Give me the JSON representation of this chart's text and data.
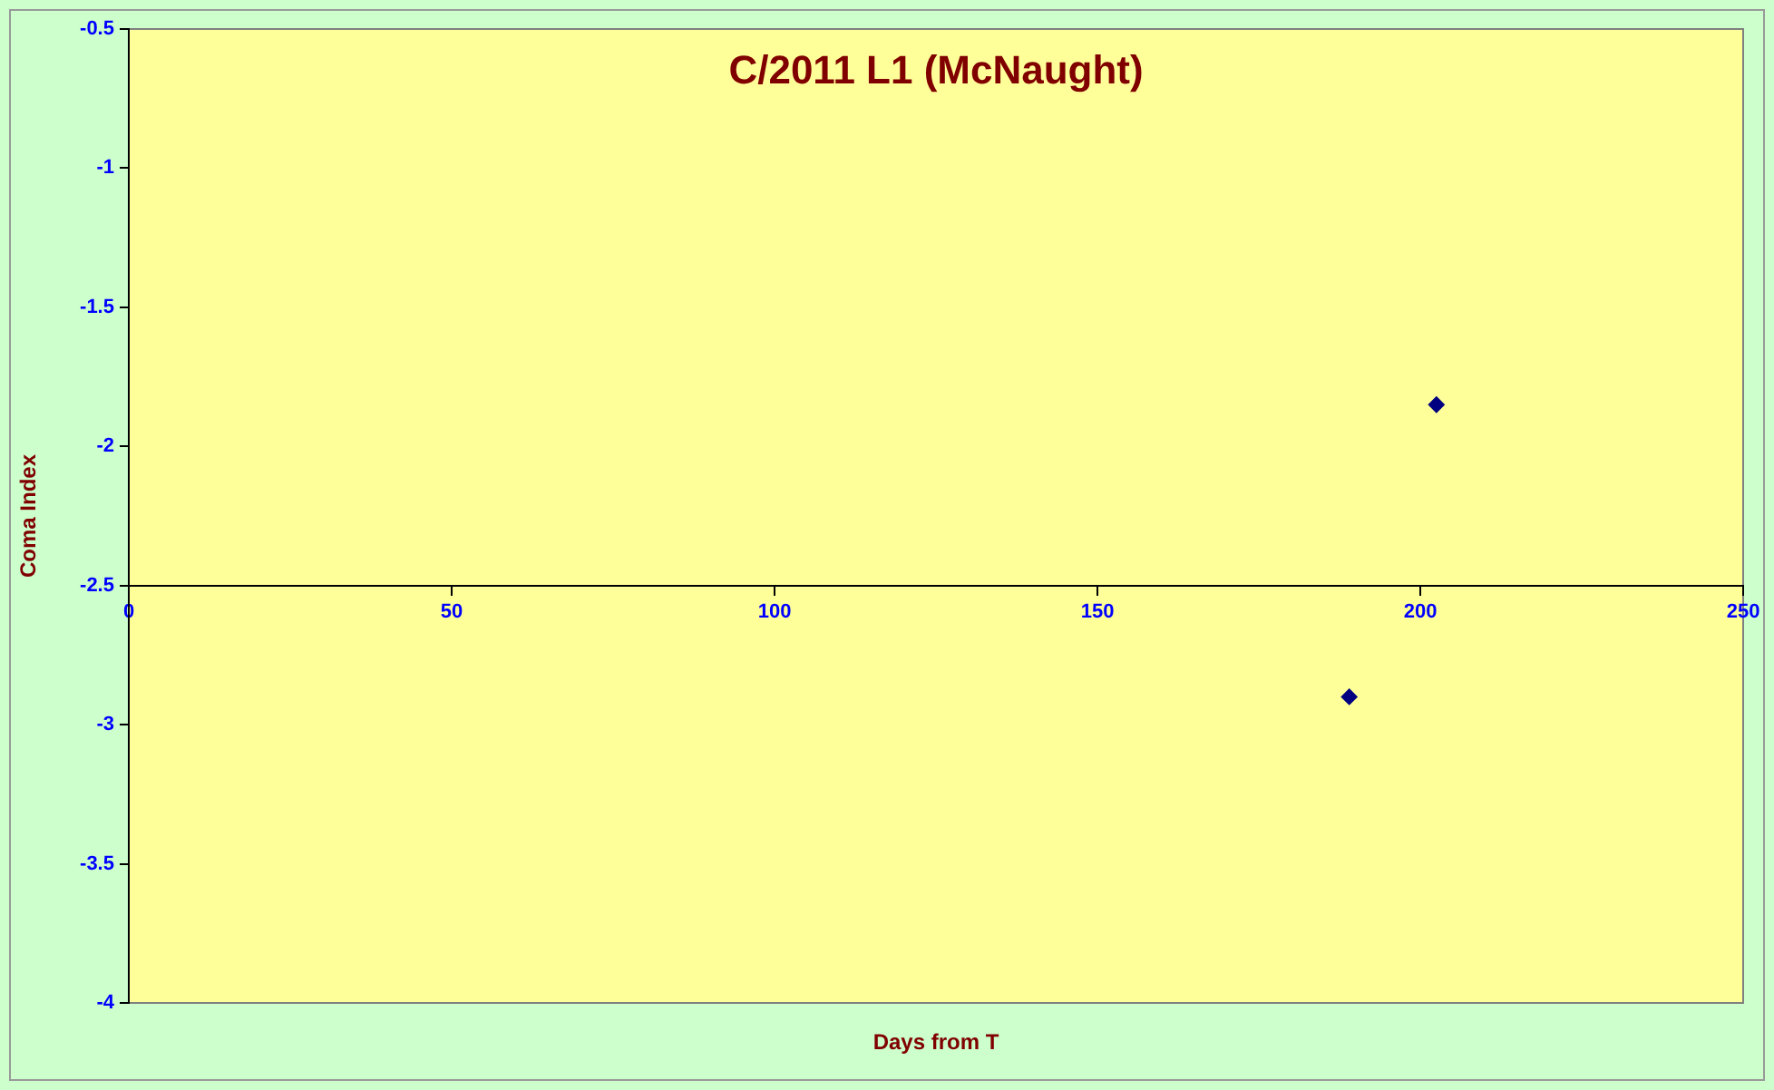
{
  "chart_data": {
    "type": "scatter",
    "title": "C/2011 L1 (McNaught)",
    "xlabel": "Days from T",
    "ylabel": "Coma Index",
    "x": [
      189,
      202.5
    ],
    "values": [
      -2.9,
      -1.85
    ],
    "color": "#000080",
    "marker": "diamond",
    "xlim": [
      0,
      250
    ],
    "xticks": [
      0,
      50,
      100,
      150,
      200,
      250
    ],
    "ylim": [
      -4,
      -0.5
    ],
    "yticks": [
      -4,
      -3.5,
      -3,
      -2.5,
      -2,
      -1.5,
      -1,
      -0.5
    ],
    "grid": false,
    "legend": false
  }
}
